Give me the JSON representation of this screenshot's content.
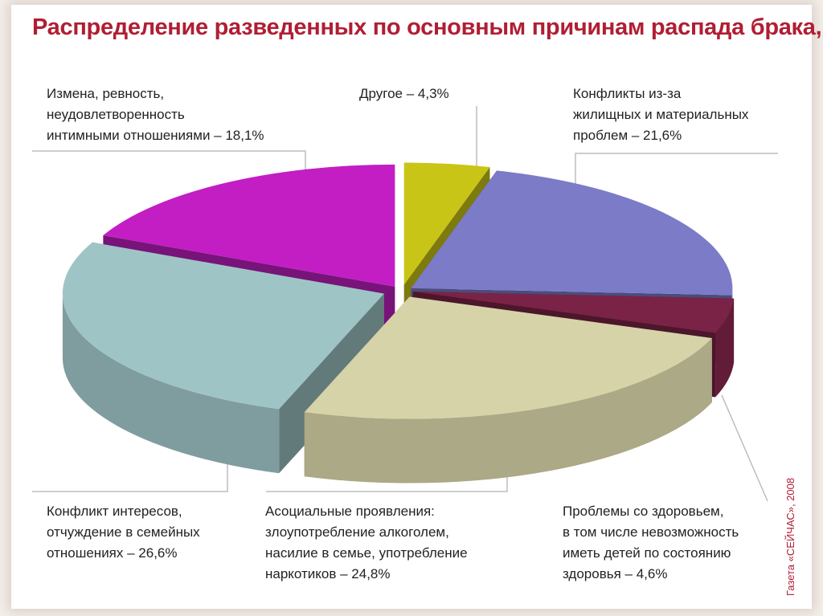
{
  "chart_data": {
    "type": "pie",
    "title": "Распределение разведенных по основным причинам распада брака, %",
    "slices": [
      {
        "label": "Другое – 4,3%",
        "value": 4.3,
        "color": "#c9c516"
      },
      {
        "label": "Конфликты из-за\nжилищных и материальных\nпроблем – 21,6%",
        "value": 21.6,
        "color": "#7b7bc8"
      },
      {
        "label": "Проблемы со здоровьем,\nв том числе невозможность\nиметь детей по состоянию\nздоровья – 4,6%",
        "value": 4.6,
        "color": "#7a2346"
      },
      {
        "label": "Асоциальные проявления:\nзлоупотребление алкоголем,\nнасилие в семье, употребление\nнаркотиков – 24,8%",
        "value": 24.8,
        "color": "#d6d3a8"
      },
      {
        "label": "Конфликт интересов,\nотчуждение в семейных\nотношениях – 26,6%",
        "value": 26.6,
        "color": "#9fc4c6"
      },
      {
        "label": "Измена, ревность,\nнеудовлетворенность\nинтимными отношениями – 18,1%",
        "value": 18.1,
        "color": "#c21ec4"
      }
    ],
    "legend": "none"
  },
  "credit": "Газета «СЕЙЧАС», 2008"
}
